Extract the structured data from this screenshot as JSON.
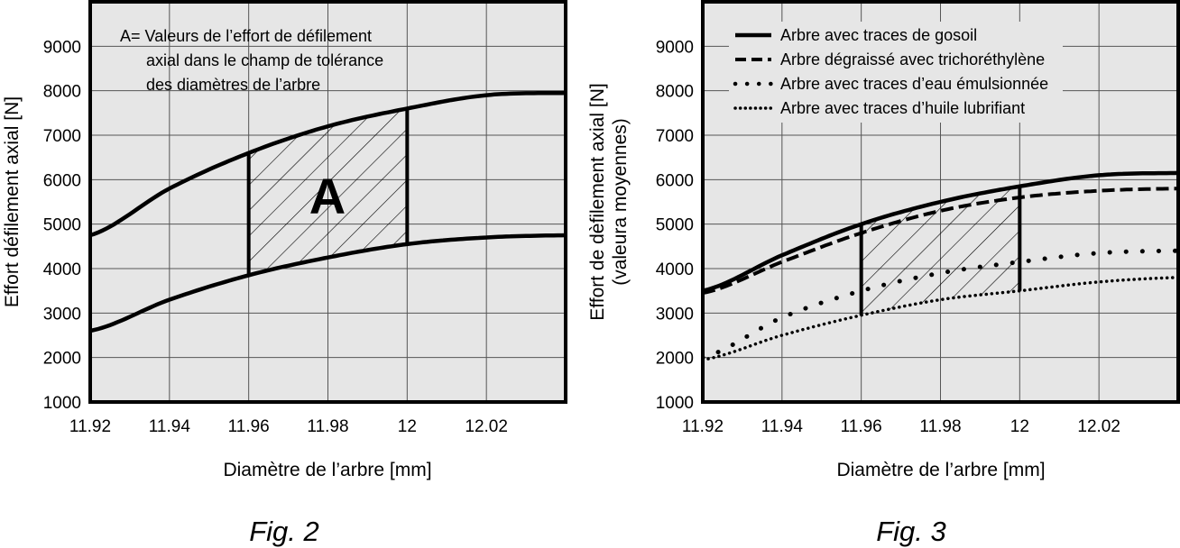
{
  "chart_data": [
    {
      "type": "area",
      "caption": "Fig. 2",
      "xlabel": "Diamètre de l’arbre [mm]",
      "ylabel": "Effort défilement axial [N]",
      "xlim": [
        11.92,
        12.04
      ],
      "ylim": [
        1000,
        10000
      ],
      "x_ticks": [
        11.92,
        11.94,
        11.96,
        11.98,
        12,
        12.02
      ],
      "x_tick_labels": [
        "11.92",
        "11.94",
        "11.96",
        "11.98",
        "12",
        "12.02"
      ],
      "y_ticks": [
        1000,
        2000,
        3000,
        4000,
        5000,
        6000,
        7000,
        8000,
        9000
      ],
      "y_tick_labels": [
        "1000",
        "2000",
        "3000",
        "4000",
        "5000",
        "6000",
        "7000",
        "8000",
        "9000"
      ],
      "grid": true,
      "annotation_lines": [
        "A= Valeurs de l’effort de défilement",
        "axial dans le champ de tolérance",
        "des diamètres de l’arbre"
      ],
      "region_label": "A",
      "region_x": [
        11.96,
        12
      ],
      "series": [
        {
          "style": "solid",
          "x": [
            11.92,
            11.94,
            11.96,
            11.98,
            12,
            12.02,
            12.04
          ],
          "values": [
            4750,
            5800,
            6600,
            7200,
            7600,
            7900,
            7950
          ]
        },
        {
          "style": "solid",
          "x": [
            11.92,
            11.94,
            11.96,
            11.98,
            12,
            12.02,
            12.04
          ],
          "values": [
            2600,
            3300,
            3850,
            4250,
            4550,
            4700,
            4750
          ]
        }
      ]
    },
    {
      "type": "line",
      "caption": "Fig. 3",
      "xlabel": "Diamètre de l’arbre [mm]",
      "ylabel": [
        "Effort de dèfilement axial [N]",
        "(valeura moyennes)"
      ],
      "xlim": [
        11.92,
        12.04
      ],
      "ylim": [
        1000,
        10000
      ],
      "x_ticks": [
        11.92,
        11.94,
        11.96,
        11.98,
        12,
        12.02
      ],
      "x_tick_labels": [
        "11.92",
        "11.94",
        "11.96",
        "11.98",
        "12",
        "12.02"
      ],
      "y_ticks": [
        1000,
        2000,
        3000,
        4000,
        5000,
        6000,
        7000,
        8000,
        9000
      ],
      "y_tick_labels": [
        "1000",
        "2000",
        "3000",
        "4000",
        "5000",
        "6000",
        "7000",
        "8000",
        "9000"
      ],
      "grid": true,
      "legend_position": "top-left",
      "region_x": [
        11.96,
        12
      ],
      "series": [
        {
          "name": "Arbre avec traces de gosoil",
          "style": "solid",
          "x": [
            11.92,
            11.94,
            11.96,
            11.98,
            12,
            12.02,
            12.04
          ],
          "values": [
            3500,
            4300,
            5000,
            5500,
            5850,
            6100,
            6150
          ]
        },
        {
          "name": "Arbre dégraissé avec trichoréthylène",
          "style": "dashed",
          "x": [
            11.92,
            11.94,
            11.96,
            11.98,
            12,
            12.02,
            12.04
          ],
          "values": [
            3450,
            4150,
            4800,
            5300,
            5600,
            5750,
            5800
          ]
        },
        {
          "name": "Arbre avec traces d’eau émulsionnée",
          "style": "dotted-sparse",
          "x": [
            11.92,
            11.94,
            11.96,
            11.98,
            12,
            12.02,
            12.04
          ],
          "values": [
            2000,
            2900,
            3500,
            3900,
            4150,
            4350,
            4400
          ]
        },
        {
          "name": "Arbre avec traces d’huile lubrifiant",
          "style": "dotted-dense",
          "x": [
            11.92,
            11.94,
            11.96,
            11.98,
            12,
            12.02,
            12.04
          ],
          "values": [
            1950,
            2500,
            2950,
            3300,
            3500,
            3700,
            3800
          ]
        }
      ]
    }
  ]
}
